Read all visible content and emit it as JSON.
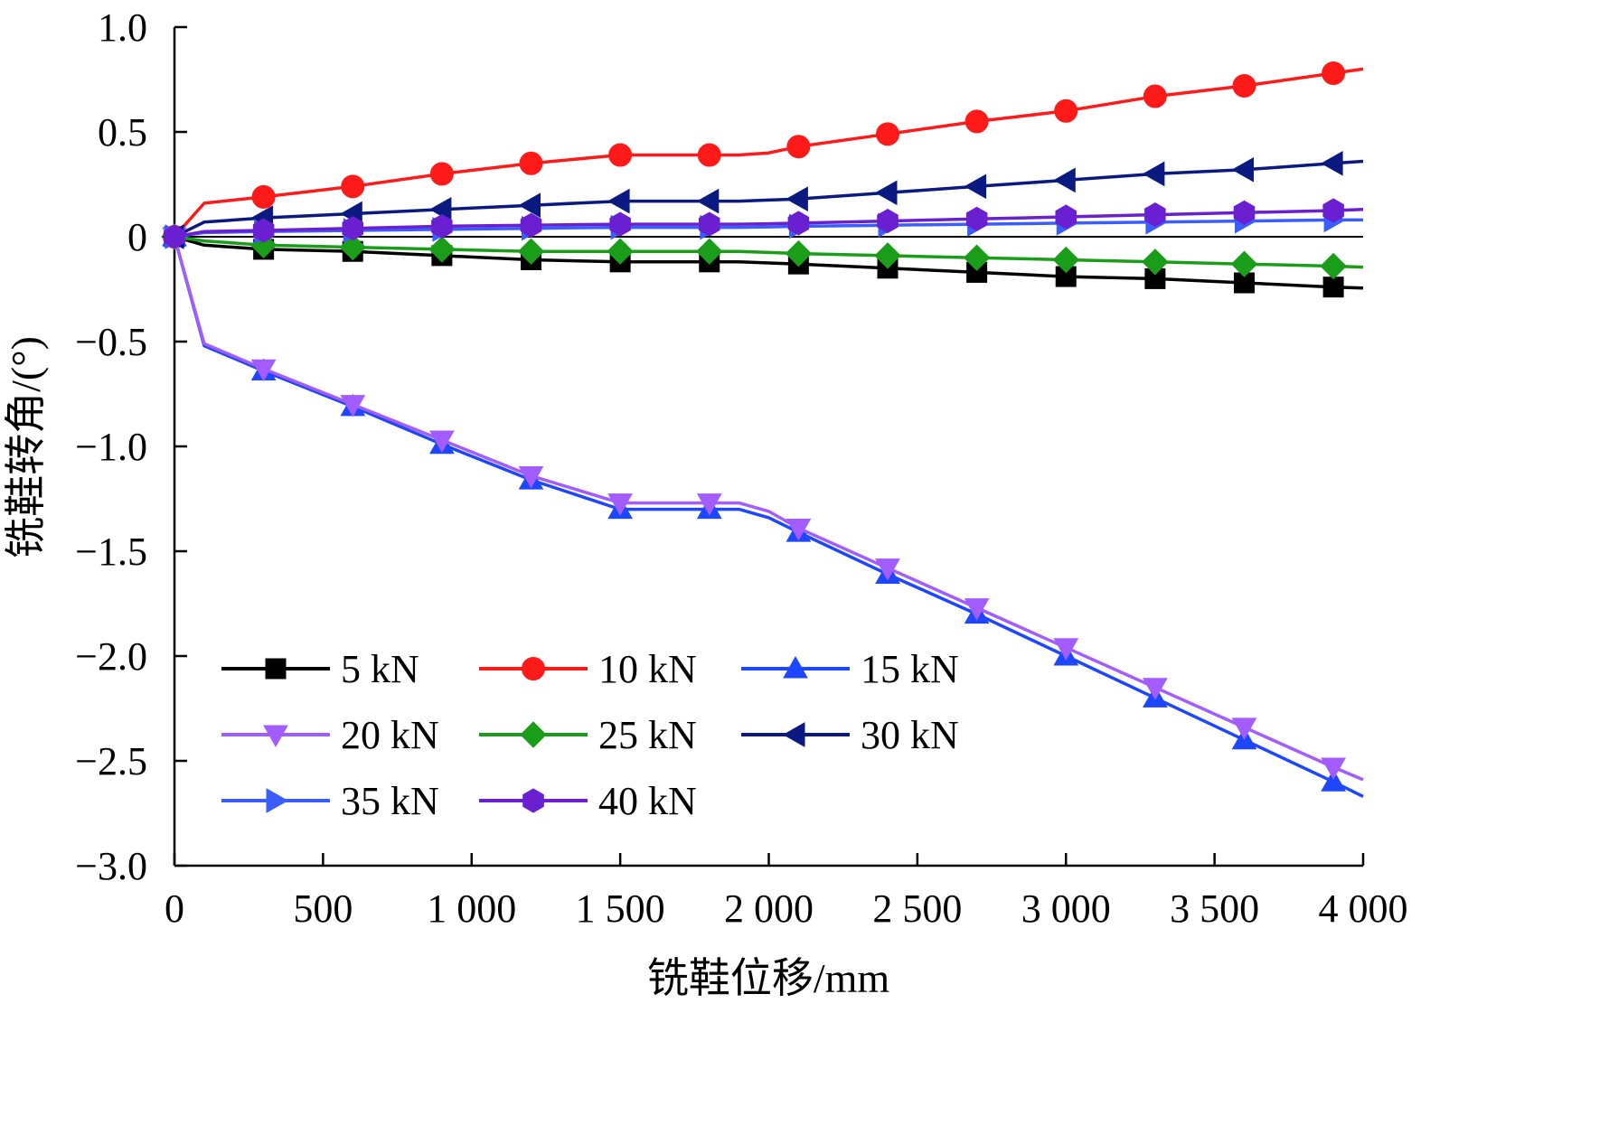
{
  "chart_data": {
    "type": "line",
    "xlabel": "铣鞋位移/mm",
    "ylabel": "铣鞋转角/(°)",
    "xlim": [
      0,
      4000
    ],
    "ylim": [
      -3.0,
      1.0
    ],
    "x_ticks": [
      0,
      500,
      1000,
      1500,
      2000,
      2500,
      3000,
      3500,
      4000
    ],
    "x_tick_labels": [
      "0",
      "500",
      "1 000",
      "1 500",
      "2 000",
      "2 500",
      "3 000",
      "3 500",
      "4 000"
    ],
    "y_ticks": [
      1.0,
      0.5,
      0,
      -0.5,
      -1.0,
      -1.5,
      -2.0,
      -2.5,
      -3.0
    ],
    "y_tick_labels": [
      "1.0",
      "0.5",
      "0",
      "−0.5",
      "−1.0",
      "−1.5",
      "−2.0",
      "−2.5",
      "−3.0"
    ],
    "grid": false,
    "zero_line": true,
    "legend_position": "bottom-left",
    "x": [
      0,
      100,
      300,
      600,
      900,
      1200,
      1500,
      1800,
      1900,
      2000,
      2100,
      2400,
      2700,
      3000,
      3300,
      3600,
      3900,
      4000
    ],
    "marker_x": [
      0,
      300,
      600,
      900,
      1200,
      1500,
      1800,
      2100,
      2400,
      2700,
      3000,
      3300,
      3600,
      3900
    ],
    "series": [
      {
        "name": "5 kN",
        "color": "#000000",
        "marker": "square",
        "values": [
          0,
          -0.04,
          -0.06,
          -0.07,
          -0.09,
          -0.11,
          -0.12,
          -0.12,
          -0.12,
          -0.125,
          -0.13,
          -0.15,
          -0.17,
          -0.19,
          -0.2,
          -0.22,
          -0.24,
          -0.245
        ]
      },
      {
        "name": "10 kN",
        "color": "#ff1a1a",
        "marker": "circle",
        "values": [
          0,
          0.16,
          0.19,
          0.24,
          0.3,
          0.35,
          0.39,
          0.39,
          0.39,
          0.4,
          0.43,
          0.49,
          0.55,
          0.6,
          0.67,
          0.72,
          0.78,
          0.8
        ]
      },
      {
        "name": "15 kN",
        "color": "#1e46ff",
        "marker": "triangle-up",
        "values": [
          0,
          -0.52,
          -0.64,
          -0.81,
          -0.99,
          -1.16,
          -1.3,
          -1.3,
          -1.3,
          -1.34,
          -1.41,
          -1.61,
          -1.8,
          -2.0,
          -2.2,
          -2.4,
          -2.6,
          -2.67
        ]
      },
      {
        "name": "20 kN",
        "color": "#a35cff",
        "marker": "triangle-down",
        "values": [
          0,
          -0.51,
          -0.63,
          -0.8,
          -0.97,
          -1.14,
          -1.27,
          -1.27,
          -1.27,
          -1.31,
          -1.39,
          -1.58,
          -1.77,
          -1.96,
          -2.15,
          -2.34,
          -2.53,
          -2.59
        ]
      },
      {
        "name": "25 kN",
        "color": "#1a9e1a",
        "marker": "diamond",
        "values": [
          0,
          -0.02,
          -0.04,
          -0.05,
          -0.06,
          -0.07,
          -0.07,
          -0.07,
          -0.07,
          -0.075,
          -0.08,
          -0.09,
          -0.1,
          -0.11,
          -0.12,
          -0.13,
          -0.14,
          -0.145
        ]
      },
      {
        "name": "30 kN",
        "color": "#0a1a80",
        "marker": "triangle-left",
        "values": [
          0,
          0.07,
          0.09,
          0.11,
          0.13,
          0.15,
          0.17,
          0.17,
          0.17,
          0.175,
          0.18,
          0.21,
          0.24,
          0.27,
          0.3,
          0.32,
          0.35,
          0.36
        ]
      },
      {
        "name": "35 kN",
        "color": "#3b5cff",
        "marker": "triangle-right",
        "values": [
          0,
          0.02,
          0.025,
          0.03,
          0.035,
          0.04,
          0.045,
          0.045,
          0.045,
          0.047,
          0.05,
          0.055,
          0.06,
          0.065,
          0.07,
          0.075,
          0.08,
          0.08
        ]
      },
      {
        "name": "40 kN",
        "color": "#6a1fd1",
        "marker": "hexagon",
        "values": [
          0,
          0.025,
          0.03,
          0.04,
          0.05,
          0.055,
          0.06,
          0.06,
          0.06,
          0.062,
          0.065,
          0.075,
          0.085,
          0.095,
          0.105,
          0.115,
          0.125,
          0.13
        ]
      }
    ]
  }
}
